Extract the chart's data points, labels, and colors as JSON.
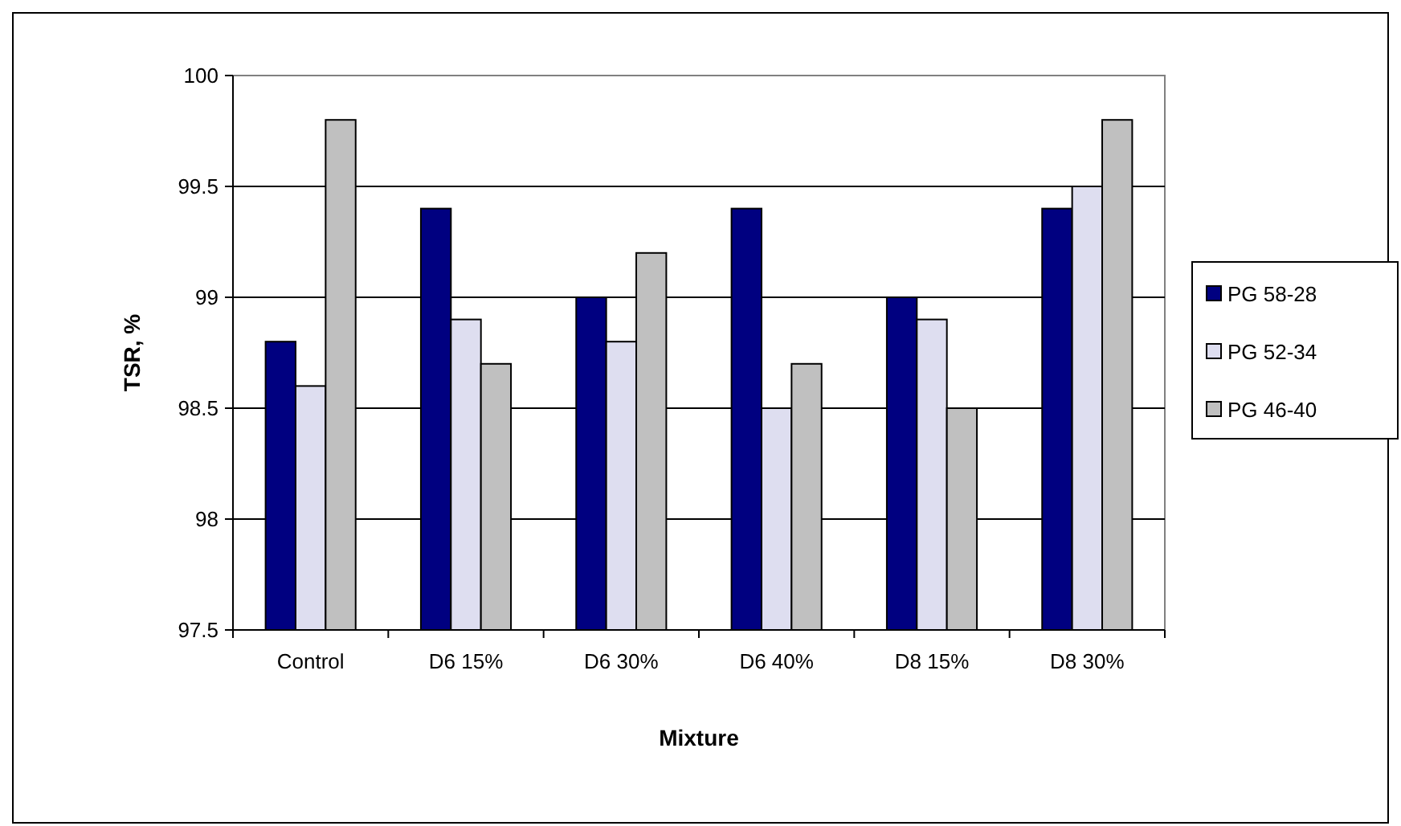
{
  "chart_data": {
    "type": "bar",
    "xlabel": "Mixture",
    "ylabel": "TSR, %",
    "categories": [
      "Control",
      "D6 15%",
      "D6 30%",
      "D6 40%",
      "D8 15%",
      "D8 30%"
    ],
    "series": [
      {
        "name": "PG 58-28",
        "color": "#000080",
        "values": [
          98.8,
          99.4,
          99.0,
          99.4,
          99.0,
          99.4
        ]
      },
      {
        "name": "PG 52-34",
        "color": "#dedef0",
        "values": [
          98.6,
          98.9,
          98.8,
          98.5,
          98.9,
          99.5
        ]
      },
      {
        "name": "PG 46-40",
        "color": "#c0c0c0",
        "values": [
          99.8,
          98.7,
          99.2,
          98.7,
          98.5,
          99.8
        ]
      }
    ],
    "ylim": [
      97.5,
      100
    ],
    "yticks": [
      {
        "value": 97.5,
        "label": "97.5"
      },
      98,
      {
        "value": 98.5,
        "label": "98.5"
      },
      99,
      {
        "value": 99.5,
        "label": "99.5"
      },
      100
    ],
    "grid": "y",
    "legend": "right"
  }
}
